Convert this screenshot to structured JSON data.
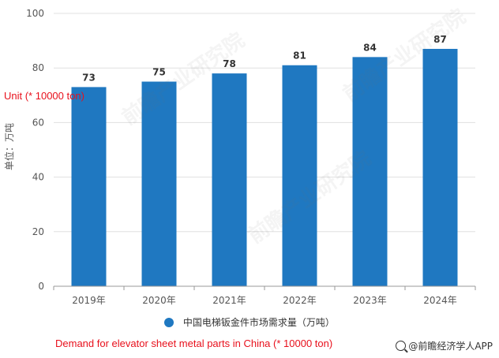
{
  "watermark": "前瞻产业研究院",
  "unit_note": "Unit (* 10000 ton)",
  "caption": "Demand for elevator sheet metal parts in China (* 10000 ton)",
  "source": "@前瞻经济学人APP",
  "colors": {
    "bar": "#1f78c1",
    "axis": "#999999",
    "grid": "#e0e0e0",
    "accent": "#e8101c"
  },
  "chart_data": {
    "type": "bar",
    "categories": [
      "2019年",
      "2020年",
      "2021年",
      "2022年",
      "2023年",
      "2024年"
    ],
    "series": [
      {
        "name": "中国电梯钣金件市场需求量（万吨）",
        "values": [
          73,
          75,
          78,
          81,
          84,
          87
        ]
      }
    ],
    "ylabel": "单位：万吨",
    "ylim": [
      0,
      100
    ],
    "yticks": [
      0,
      20,
      40,
      60,
      80,
      100
    ],
    "grid": true,
    "legend": "bottom",
    "data_labels": true
  }
}
